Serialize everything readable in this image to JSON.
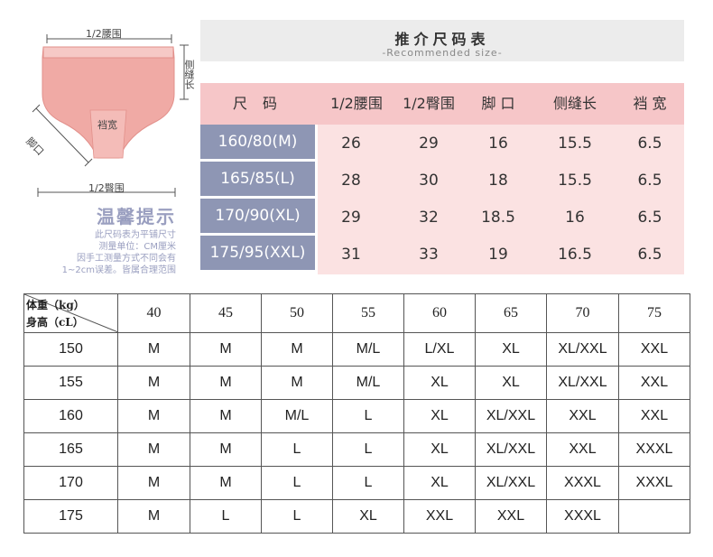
{
  "diagram": {
    "half_waist": "1/2腰围",
    "side_seam": "侧缝长",
    "crotch_width": "裆宽",
    "leg_opening": "脚口",
    "half_hip": "1/2臀围",
    "colors": {
      "panty": "#f0aaa5",
      "waistband": "#f6c9c6"
    }
  },
  "tips": {
    "title": "温馨提示",
    "lines": [
      "此尺码表为平铺尺寸",
      "测量单位：CM厘米",
      "因手工测量方式不同会有",
      "1~2cm误差。皆属合理范围"
    ]
  },
  "size_table": {
    "title_cn": "推介尺码表",
    "title_en": "-Recommended size-",
    "headers": [
      "尺 码",
      "1/2腰围",
      "1/2臀围",
      "脚 口",
      "侧缝长",
      "裆 宽"
    ],
    "rows": [
      {
        "size": "160/80(M)",
        "values": [
          "26",
          "29",
          "16",
          "15.5",
          "6.5"
        ]
      },
      {
        "size": "165/85(L)",
        "values": [
          "28",
          "30",
          "18",
          "15.5",
          "6.5"
        ]
      },
      {
        "size": "170/90(XL)",
        "values": [
          "29",
          "32",
          "18.5",
          "16",
          "6.5"
        ]
      },
      {
        "size": "175/95(XXL)",
        "values": [
          "31",
          "33",
          "19",
          "16.5",
          "6.5"
        ]
      }
    ],
    "colors": {
      "header": "#f6c6c8",
      "body": "#fbe2e2",
      "row_label": "#8e96b4"
    }
  },
  "recommend": {
    "corner_weight": "体重（kg）",
    "corner_height": "身高（cL）",
    "weights": [
      "40",
      "45",
      "50",
      "55",
      "60",
      "65",
      "70",
      "75"
    ],
    "rows": [
      {
        "height": "150",
        "sizes": [
          "M",
          "M",
          "M",
          "M/L",
          "L/XL",
          "XL",
          "XL/XXL",
          "XXL"
        ]
      },
      {
        "height": "155",
        "sizes": [
          "M",
          "M",
          "M",
          "M/L",
          "XL",
          "XL",
          "XL/XXL",
          "XXL"
        ]
      },
      {
        "height": "160",
        "sizes": [
          "M",
          "M",
          "M/L",
          "L",
          "XL",
          "XL/XXL",
          "XXL",
          "XXL"
        ]
      },
      {
        "height": "165",
        "sizes": [
          "M",
          "M",
          "L",
          "L",
          "XL",
          "XL/XXL",
          "XXL",
          "XXXL"
        ]
      },
      {
        "height": "170",
        "sizes": [
          "M",
          "M",
          "L",
          "L",
          "XL",
          "XL/XXL",
          "XXXL",
          "XXXL"
        ]
      },
      {
        "height": "175",
        "sizes": [
          "M",
          "L",
          "L",
          "XL",
          "XXL",
          "XXL",
          "XXXL",
          ""
        ]
      }
    ]
  }
}
